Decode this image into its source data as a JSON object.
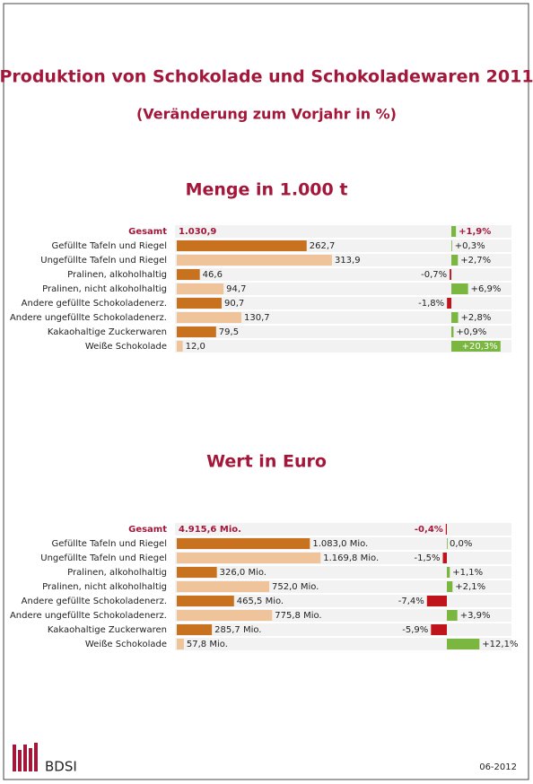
{
  "header": {
    "title": "Produktion von Schokolade und Schokoladewaren 2011",
    "subtitle": "(Veränderung zum Vorjahr in %)"
  },
  "chart_data": [
    {
      "type": "bar",
      "title": "Menge in 1.000 t",
      "total_name": "Gesamt",
      "total_label": "1.030,9",
      "total_change": 1.9,
      "total_change_label": "+1,9%",
      "categories": [
        "Gefüllte Tafeln und Riegel",
        "Ungefüllte Tafeln und Riegel",
        "Pralinen, alkoholhaltig",
        "Pralinen, nicht alkoholhaltig",
        "Andere gefüllte Schokoladenerz.",
        "Andere ungefüllte Schokoladenerz.",
        "Kakaohaltige Zuckerwaren",
        "Weiße Schokolade"
      ],
      "values": [
        262.7,
        313.9,
        46.6,
        94.7,
        90.7,
        130.7,
        79.5,
        12.0
      ],
      "value_labels": [
        "262,7",
        "313,9",
        "46,6",
        "94,7",
        "90,7",
        "130,7",
        "79,5",
        "12,0"
      ],
      "changes": [
        0.3,
        2.7,
        -0.7,
        6.9,
        -1.8,
        2.8,
        0.9,
        20.3
      ],
      "change_labels": [
        "+0,3%",
        "+2,7%",
        "-0,7%",
        "+6,9%",
        "-1,8%",
        "+2,8%",
        "+0,9%",
        "+20,3%"
      ],
      "colors": [
        "#c8711f",
        "#efc49b"
      ],
      "positive_color": "#7ab640",
      "negative_color": "#c0141c"
    },
    {
      "type": "bar",
      "title": "Wert in Euro",
      "total_name": "Gesamt",
      "total_label": "4.915,6 Mio.",
      "total_change": -0.4,
      "total_change_label": "-0,4%",
      "categories": [
        "Gefüllte Tafeln und Riegel",
        "Ungefüllte Tafeln und Riegel",
        "Pralinen, alkoholhaltig",
        "Pralinen, nicht alkoholhaltig",
        "Andere gefüllte Schokoladenerz.",
        "Andere ungefüllte Schokoladenerz.",
        "Kakaohaltige Zuckerwaren",
        "Weiße Schokolade"
      ],
      "values": [
        1083.0,
        1169.8,
        326.0,
        752.0,
        465.5,
        775.8,
        285.7,
        57.8
      ],
      "value_labels": [
        "1.083,0 Mio.",
        "1.169,8 Mio.",
        "326,0 Mio.",
        "752,0 Mio.",
        "465,5 Mio.",
        "775,8 Mio.",
        "285,7 Mio.",
        "57,8 Mio."
      ],
      "changes": [
        0.0,
        -1.5,
        1.1,
        2.1,
        -7.4,
        3.9,
        -5.9,
        12.1
      ],
      "change_labels": [
        "0,0%",
        "-1,5%",
        "+1,1%",
        "+2,1%",
        "-7,4%",
        "+3,9%",
        "-5,9%",
        "+12,1%"
      ],
      "colors": [
        "#c8711f",
        "#efc49b"
      ],
      "positive_color": "#7ab640",
      "negative_color": "#c0141c"
    }
  ],
  "footer": {
    "brand": "BDSI",
    "date": "06-2012"
  }
}
